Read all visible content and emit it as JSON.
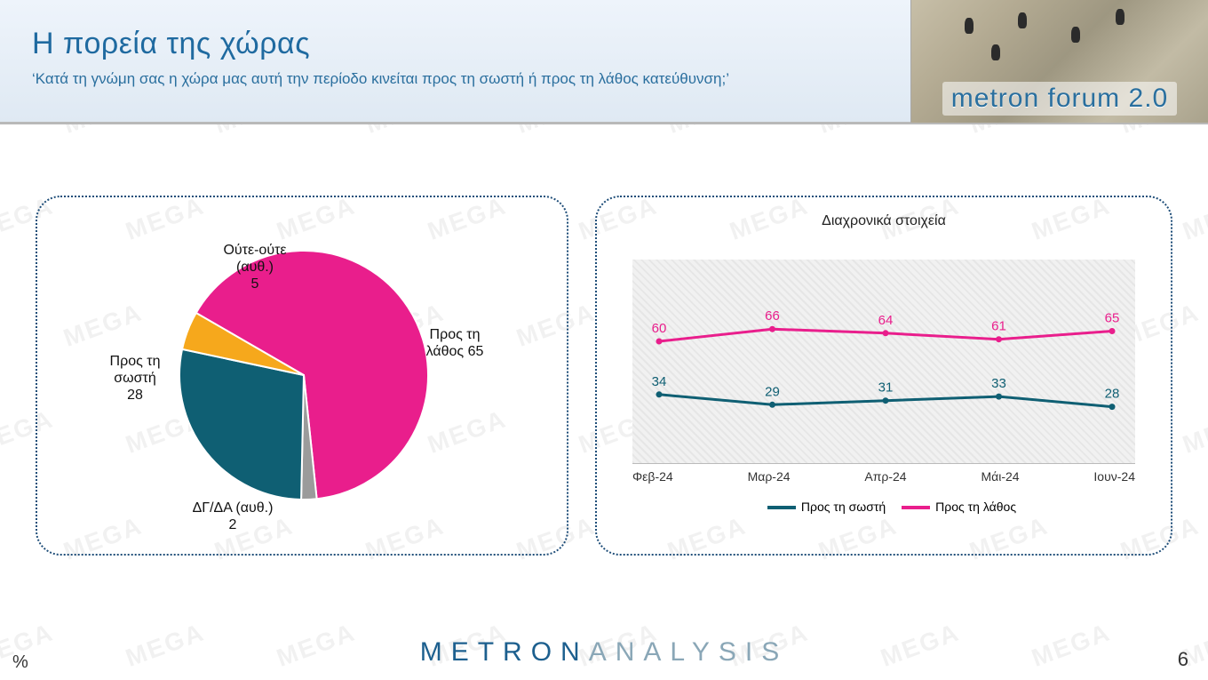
{
  "header": {
    "title": "Η πορεία της χώρας",
    "subtitle": "‘Κατά τη γνώμη σας η χώρα μας αυτή την περίοδο κινείται προς τη σωστή ή προς τη λάθος κατεύθυνση;’",
    "forum_text": "metron forum 2.0"
  },
  "watermark_text": "MEGA",
  "colors": {
    "header_accent": "#1f6aa0",
    "panel_border": "#1f4e79",
    "series_right": "#e91e8c",
    "series_wrong_alias_lathos": "#e91e8c",
    "series_correct": "#0f5f73",
    "neither": "#f6a81c",
    "dkna": "#9b9b9b",
    "plot_bg": "#ececec",
    "label_text": "#111111",
    "footer_primary": "#1c5f8e",
    "footer_secondary": "#8aa7b7"
  },
  "pie": {
    "type": "pie",
    "center_note": "",
    "slices": [
      {
        "key": "lathos",
        "label": "Προς τη λάθος",
        "value": 65,
        "color": "#e91e8c",
        "disp": "Προς τη\nλάθος 65"
      },
      {
        "key": "dkna",
        "label": "ΔΓ/ΔΑ (αυθ.)",
        "value": 2,
        "color": "#9b9b9b",
        "disp": "ΔΓ/ΔΑ (αυθ.)\n2"
      },
      {
        "key": "sosti",
        "label": "Προς τη σωστή",
        "value": 28,
        "color": "#0f5f73",
        "disp": "Προς τη\nσωστή\n28"
      },
      {
        "key": "neither",
        "label": "Ούτε-ούτε (αυθ.)",
        "value": 5,
        "color": "#f6a81c",
        "disp": "Ούτε-ούτε\n(αυθ.)\n5"
      }
    ],
    "start_angle_deg": -60,
    "radius": 140
  },
  "line": {
    "type": "line",
    "title": "Διαχρονικά στοιχεία",
    "categories": [
      "Φεβ-24",
      "Μαρ-24",
      "Απρ-24",
      "Μάι-24",
      "Ιουν-24"
    ],
    "ylim": [
      0,
      100
    ],
    "line_width": 3,
    "series": [
      {
        "key": "sosti",
        "label": "Προς τη σωστή",
        "color": "#0f5f73",
        "values": [
          34,
          29,
          31,
          33,
          28
        ]
      },
      {
        "key": "lathos",
        "label": "Προς τη λάθος",
        "color": "#e91e8c",
        "values": [
          60,
          66,
          64,
          61,
          65
        ]
      }
    ],
    "value_label_fontsize": 15
  },
  "footer": {
    "logo_part1": "METRON",
    "logo_part2": "ANALYSIS",
    "page": "6",
    "unit": "%"
  }
}
